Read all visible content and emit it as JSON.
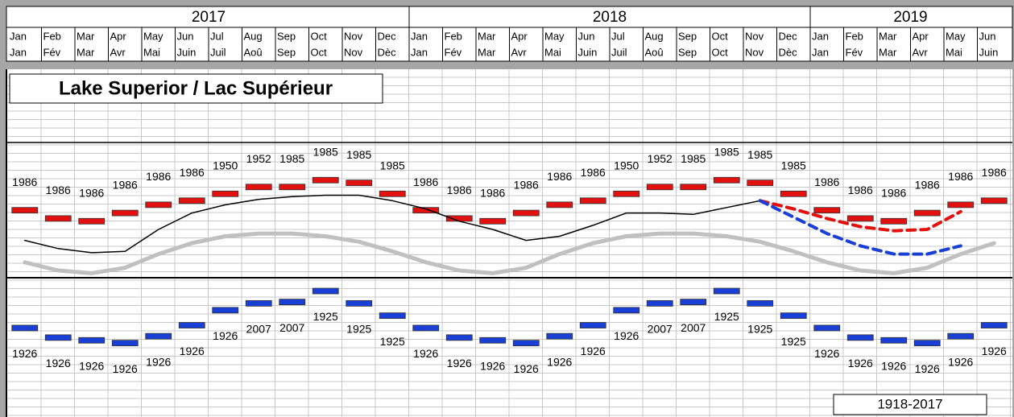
{
  "chart_data": {
    "type": "line",
    "title": "Lake Superior / Lac Supérieur",
    "period": "1918-2017",
    "years": [
      "2017",
      "2018",
      "2019"
    ],
    "categories": [
      "Jan",
      "Feb",
      "Mar",
      "Apr",
      "May",
      "Jun",
      "Jul",
      "Aug",
      "Sep",
      "Oct",
      "Nov",
      "Dec",
      "Jan",
      "Feb",
      "Mar",
      "Apr",
      "May",
      "Jun",
      "Jul",
      "Aug",
      "Sep",
      "Oct",
      "Nov",
      "Dec",
      "Jan",
      "Feb",
      "Mar",
      "Apr",
      "May",
      "Jun"
    ],
    "categories_fr": [
      "Jan",
      "Fév",
      "Mar",
      "Avr",
      "Mai",
      "Juin",
      "Juil",
      "Aoû",
      "Sep",
      "Oct",
      "Nov",
      "Dèc",
      "Jan",
      "Fév",
      "Mar",
      "Avr",
      "Mai",
      "Juin",
      "Juil",
      "Aoû",
      "Sep",
      "Oct",
      "Nov",
      "Dèc",
      "Jan",
      "Fév",
      "Mar",
      "Avr",
      "Mai",
      "Juin"
    ],
    "ylim": [
      182.18,
      184.72
    ],
    "series": [
      {
        "style": "marker",
        "label_side": "above",
        "color": "#e31010",
        "values": [
          183.69,
          183.63,
          183.61,
          183.67,
          183.73,
          183.76,
          183.81,
          183.86,
          183.86,
          183.91,
          183.89,
          183.81,
          183.69,
          183.63,
          183.61,
          183.67,
          183.73,
          183.76,
          183.81,
          183.86,
          183.86,
          183.91,
          183.89,
          183.81,
          183.69,
          183.63,
          183.61,
          183.67,
          183.73,
          183.76
        ],
        "labels": [
          "1986",
          "1986",
          "1986",
          "1986",
          "1986",
          "1986",
          "1950",
          "1952",
          "1985",
          "1985",
          "1985",
          "1985",
          "1986",
          "1986",
          "1986",
          "1986",
          "1986",
          "1986",
          "1950",
          "1952",
          "1985",
          "1985",
          "1985",
          "1985",
          "1986",
          "1986",
          "1986",
          "1986",
          "1986",
          "1986"
        ]
      },
      {
        "style": "marker",
        "label_side": "below",
        "color": "#1a3fd6",
        "values": [
          182.83,
          182.76,
          182.74,
          182.72,
          182.77,
          182.85,
          182.96,
          183.01,
          183.02,
          183.1,
          183.01,
          182.92,
          182.83,
          182.76,
          182.74,
          182.72,
          182.77,
          182.85,
          182.96,
          183.01,
          183.02,
          183.1,
          183.01,
          182.92,
          182.83,
          182.76,
          182.74,
          182.72,
          182.77,
          182.85
        ],
        "labels": [
          "1926",
          "1926",
          "1926",
          "1926",
          "1926",
          "1926",
          "1926",
          "2007",
          "2007",
          "1925",
          "1925",
          "1925",
          "1926",
          "1926",
          "1926",
          "1926",
          "1926",
          "1926",
          "1926",
          "2007",
          "2007",
          "1925",
          "1925",
          "1925",
          "1926",
          "1926",
          "1926",
          "1926",
          "1926",
          "1926"
        ]
      },
      {
        "style": "solid",
        "color": "#c0c0c0",
        "width": 5,
        "values": [
          183.31,
          183.25,
          183.23,
          183.27,
          183.37,
          183.45,
          183.5,
          183.52,
          183.52,
          183.5,
          183.46,
          183.39,
          183.31,
          183.25,
          183.23,
          183.27,
          183.37,
          183.45,
          183.5,
          183.52,
          183.52,
          183.5,
          183.46,
          183.39,
          183.31,
          183.25,
          183.23,
          183.27,
          183.37,
          183.45
        ]
      },
      {
        "style": "solid",
        "color": "#000000",
        "width": 1.5,
        "values": [
          183.47,
          183.41,
          183.38,
          183.39,
          183.55,
          183.67,
          183.73,
          183.77,
          183.79,
          183.8,
          183.8,
          183.76,
          183.7,
          183.61,
          183.55,
          183.47,
          183.5,
          183.58,
          183.67,
          183.67,
          183.66,
          183.71,
          183.76,
          null,
          null,
          null,
          null,
          null,
          null,
          null
        ]
      },
      {
        "style": "dashed",
        "color": "#e31010",
        "width": 4,
        "values": [
          null,
          null,
          null,
          null,
          null,
          null,
          null,
          null,
          null,
          null,
          null,
          null,
          null,
          null,
          null,
          null,
          null,
          null,
          null,
          null,
          null,
          null,
          183.76,
          183.7,
          183.63,
          183.57,
          183.54,
          183.55,
          183.68,
          null
        ]
      },
      {
        "style": "dashed",
        "color": "#1a3fd6",
        "width": 4,
        "values": [
          null,
          null,
          null,
          null,
          null,
          null,
          null,
          null,
          null,
          null,
          null,
          null,
          null,
          null,
          null,
          null,
          null,
          null,
          null,
          null,
          null,
          null,
          183.76,
          183.64,
          183.52,
          183.43,
          183.37,
          183.37,
          183.43,
          null
        ]
      }
    ]
  }
}
